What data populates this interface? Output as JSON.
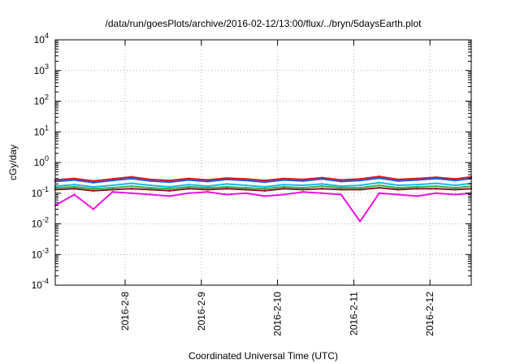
{
  "chart_data": {
    "type": "line",
    "title": "/data/run/goesPlots/archive/2016-02-12/13:00/flux/../bryn/5daysEarth.plot",
    "xlabel": "Coordinated Universal Time (UTC)",
    "ylabel": "cGy/day",
    "yscale": "log",
    "ylim": [
      0.0001,
      10000
    ],
    "xlim": [
      "2016-02-07 02:00",
      "2016-02-12 13:00"
    ],
    "grid": true,
    "x_ticks": [
      "2016-2-8",
      "2016-2-9",
      "2016-2-10",
      "2016-2-11",
      "2016-2-12"
    ],
    "y_ticks": [
      {
        "base": "10",
        "exp": "-4"
      },
      {
        "base": "10",
        "exp": "-3"
      },
      {
        "base": "10",
        "exp": "-2"
      },
      {
        "base": "10",
        "exp": "-1"
      },
      {
        "base": "10",
        "exp": "0"
      },
      {
        "base": "10",
        "exp": "1"
      },
      {
        "base": "10",
        "exp": "2"
      },
      {
        "base": "10",
        "exp": "3"
      },
      {
        "base": "10",
        "exp": "4"
      }
    ],
    "x": [
      "2016-02-07 02:00",
      "2016-02-07 08:00",
      "2016-02-07 14:00",
      "2016-02-07 20:00",
      "2016-02-08 02:00",
      "2016-02-08 08:00",
      "2016-02-08 14:00",
      "2016-02-08 20:00",
      "2016-02-09 02:00",
      "2016-02-09 08:00",
      "2016-02-09 14:00",
      "2016-02-09 20:00",
      "2016-02-10 02:00",
      "2016-02-10 08:00",
      "2016-02-10 14:00",
      "2016-02-10 20:00",
      "2016-02-11 02:00",
      "2016-02-11 08:00",
      "2016-02-11 14:00",
      "2016-02-11 20:00",
      "2016-02-12 02:00",
      "2016-02-12 08:00",
      "2016-02-12 13:00"
    ],
    "series": [
      {
        "color": "#e8111a",
        "values": [
          0.27,
          0.3,
          0.25,
          0.29,
          0.34,
          0.28,
          0.26,
          0.3,
          0.27,
          0.31,
          0.29,
          0.26,
          0.3,
          0.28,
          0.32,
          0.27,
          0.29,
          0.35,
          0.28,
          0.3,
          0.33,
          0.29,
          0.34
        ]
      },
      {
        "color": "#1f5bd8",
        "values": [
          0.24,
          0.27,
          0.22,
          0.26,
          0.3,
          0.25,
          0.23,
          0.27,
          0.24,
          0.28,
          0.26,
          0.23,
          0.27,
          0.25,
          0.29,
          0.24,
          0.26,
          0.31,
          0.25,
          0.27,
          0.3,
          0.26,
          0.3
        ]
      },
      {
        "color": "#19b9e8",
        "values": [
          0.17,
          0.19,
          0.16,
          0.18,
          0.21,
          0.18,
          0.16,
          0.19,
          0.17,
          0.2,
          0.18,
          0.16,
          0.19,
          0.18,
          0.2,
          0.17,
          0.18,
          0.22,
          0.18,
          0.19,
          0.21,
          0.18,
          0.21
        ]
      },
      {
        "color": "#35b24a",
        "values": [
          0.15,
          0.16,
          0.14,
          0.15,
          0.17,
          0.15,
          0.14,
          0.16,
          0.15,
          0.16,
          0.15,
          0.14,
          0.16,
          0.15,
          0.17,
          0.15,
          0.15,
          0.18,
          0.15,
          0.16,
          0.17,
          0.15,
          0.17
        ]
      },
      {
        "color": "#8a1424",
        "values": [
          0.13,
          0.14,
          0.12,
          0.13,
          0.14,
          0.13,
          0.12,
          0.14,
          0.13,
          0.14,
          0.13,
          0.12,
          0.14,
          0.13,
          0.14,
          0.13,
          0.13,
          0.15,
          0.13,
          0.14,
          0.14,
          0.13,
          0.14
        ]
      },
      {
        "color": "#ee11e4",
        "values": [
          0.04,
          0.09,
          0.03,
          0.11,
          0.1,
          0.09,
          0.08,
          0.1,
          0.11,
          0.09,
          0.1,
          0.08,
          0.09,
          0.11,
          0.1,
          0.09,
          0.012,
          0.1,
          0.09,
          0.08,
          0.1,
          0.09,
          0.1
        ]
      }
    ]
  }
}
